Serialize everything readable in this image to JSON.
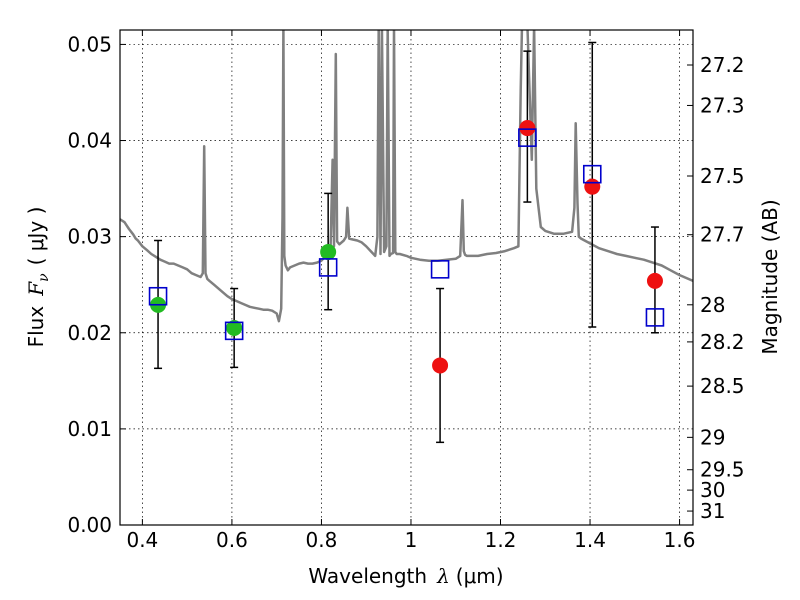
{
  "chart_data": {
    "type": "scatter",
    "xlabel": "Wavelength  λ (μm)",
    "ylabel": "Flux  F_ν  ( μJy )",
    "ylabel_parts": {
      "prefix": "Flux",
      "symbol": "F",
      "subscript": "ν",
      "unit": "( μJy )"
    },
    "xlabel_parts": {
      "prefix": "Wavelength",
      "symbol": "λ",
      "unit": "(μm)"
    },
    "y2label": "Magnitude (AB)",
    "xlim": [
      0.35,
      1.63
    ],
    "ylim": [
      0.0,
      0.0515
    ],
    "grid": true,
    "x_ticks": [
      {
        "value": 0.4,
        "label": "0.4"
      },
      {
        "value": 0.6,
        "label": "0.6"
      },
      {
        "value": 0.8,
        "label": "0.8"
      },
      {
        "value": 1.0,
        "label": "1"
      },
      {
        "value": 1.2,
        "label": "1.2"
      },
      {
        "value": 1.4,
        "label": "1.4"
      },
      {
        "value": 1.6,
        "label": "1.6"
      }
    ],
    "y_ticks": [
      {
        "value": 0.0,
        "label": "0.00"
      },
      {
        "value": 0.01,
        "label": "0.01"
      },
      {
        "value": 0.02,
        "label": "0.02"
      },
      {
        "value": 0.03,
        "label": "0.03"
      },
      {
        "value": 0.04,
        "label": "0.04"
      },
      {
        "value": 0.05,
        "label": "0.05"
      }
    ],
    "y2_ticks": [
      {
        "label": "27.2",
        "flux": 0.04786
      },
      {
        "label": "27.3",
        "flux": 0.04365
      },
      {
        "label": "27.5",
        "flux": 0.03631
      },
      {
        "label": "27.7",
        "flux": 0.0302
      },
      {
        "label": "28",
        "flux": 0.02291
      },
      {
        "label": "28.2",
        "flux": 0.01905
      },
      {
        "label": "28.5",
        "flux": 0.01445
      },
      {
        "label": "29",
        "flux": 0.00912
      },
      {
        "label": "29.5",
        "flux": 0.00575
      },
      {
        "label": "30",
        "flux": 0.00363
      },
      {
        "label": "31",
        "flux": 0.00145
      }
    ],
    "model_spectrum": {
      "color": "#808080",
      "x": [
        0.35,
        0.36,
        0.37,
        0.38,
        0.385,
        0.39,
        0.395,
        0.4,
        0.41,
        0.42,
        0.43,
        0.44,
        0.45,
        0.46,
        0.47,
        0.48,
        0.49,
        0.5,
        0.51,
        0.52,
        0.53,
        0.535,
        0.538,
        0.541,
        0.545,
        0.55,
        0.56,
        0.57,
        0.58,
        0.59,
        0.6,
        0.61,
        0.62,
        0.63,
        0.64,
        0.65,
        0.66,
        0.67,
        0.68,
        0.69,
        0.7,
        0.705,
        0.71,
        0.713,
        0.715,
        0.717,
        0.72,
        0.725,
        0.73,
        0.74,
        0.75,
        0.76,
        0.77,
        0.78,
        0.79,
        0.8,
        0.81,
        0.82,
        0.825,
        0.828,
        0.832,
        0.835,
        0.84,
        0.85,
        0.855,
        0.858,
        0.862,
        0.87,
        0.88,
        0.89,
        0.9,
        0.91,
        0.92,
        0.925,
        0.928,
        0.932,
        0.935,
        0.94,
        0.945,
        0.948,
        0.952,
        0.955,
        0.96,
        0.962,
        0.965,
        0.968,
        0.975,
        0.99,
        1.0,
        1.02,
        1.04,
        1.06,
        1.08,
        1.1,
        1.11,
        1.115,
        1.118,
        1.121,
        1.125,
        1.13,
        1.15,
        1.17,
        1.19,
        1.21,
        1.23,
        1.24,
        1.245,
        1.248,
        1.252,
        1.255,
        1.26,
        1.27,
        1.275,
        1.28,
        1.29,
        1.3,
        1.32,
        1.34,
        1.36,
        1.365,
        1.368,
        1.372,
        1.375,
        1.38,
        1.4,
        1.42,
        1.44,
        1.46,
        1.48,
        1.5,
        1.52,
        1.54,
        1.56,
        1.58,
        1.6,
        1.63
      ],
      "y": [
        0.0318,
        0.0315,
        0.0308,
        0.0302,
        0.0298,
        0.0296,
        0.0293,
        0.029,
        0.0286,
        0.0282,
        0.0279,
        0.0276,
        0.0274,
        0.0272,
        0.0272,
        0.027,
        0.0268,
        0.0266,
        0.0262,
        0.026,
        0.0258,
        0.0262,
        0.0394,
        0.0262,
        0.0256,
        0.0254,
        0.025,
        0.0246,
        0.0242,
        0.0238,
        0.0235,
        0.0233,
        0.0231,
        0.0229,
        0.0227,
        0.0226,
        0.0225,
        0.0224,
        0.0224,
        0.0223,
        0.022,
        0.0212,
        0.0225,
        0.032,
        0.052,
        0.028,
        0.027,
        0.0265,
        0.0268,
        0.027,
        0.0272,
        0.0273,
        0.0272,
        0.0272,
        0.0273,
        0.0275,
        0.028,
        0.0281,
        0.038,
        0.029,
        0.049,
        0.0295,
        0.0292,
        0.0296,
        0.03,
        0.033,
        0.0298,
        0.0297,
        0.0296,
        0.0294,
        0.029,
        0.0285,
        0.028,
        0.03,
        0.052,
        0.0282,
        0.052,
        0.0284,
        0.029,
        0.052,
        0.028,
        0.0282,
        0.0283,
        0.052,
        0.0284,
        0.0282,
        0.0282,
        0.028,
        0.0278,
        0.0276,
        0.0275,
        0.0275,
        0.0276,
        0.0277,
        0.028,
        0.0338,
        0.0285,
        0.0281,
        0.028,
        0.028,
        0.028,
        0.0282,
        0.0283,
        0.0285,
        0.0288,
        0.029,
        0.0452,
        0.052,
        0.052,
        0.052,
        0.052,
        0.038,
        0.052,
        0.035,
        0.031,
        0.0306,
        0.0303,
        0.0303,
        0.0305,
        0.033,
        0.0418,
        0.0335,
        0.03,
        0.0298,
        0.0293,
        0.0288,
        0.0285,
        0.0282,
        0.028,
        0.0278,
        0.0276,
        0.0273,
        0.027,
        0.0265,
        0.026,
        0.0254
      ]
    },
    "error_bars": [
      {
        "x": 0.435,
        "low": 0.0163,
        "high": 0.0296
      },
      {
        "x": 0.605,
        "low": 0.0164,
        "high": 0.0246
      },
      {
        "x": 0.815,
        "low": 0.0224,
        "high": 0.0345
      },
      {
        "x": 1.065,
        "low": 0.0086,
        "high": 0.0246
      },
      {
        "x": 1.26,
        "low": 0.0336,
        "high": 0.0493
      },
      {
        "x": 1.405,
        "low": 0.0206,
        "high": 0.0502
      },
      {
        "x": 1.545,
        "low": 0.02,
        "high": 0.031
      }
    ],
    "series": [
      {
        "marker": "circle",
        "color": "#22bb22",
        "points": [
          {
            "x": 0.435,
            "y": 0.0229
          },
          {
            "x": 0.605,
            "y": 0.0205
          },
          {
            "x": 0.815,
            "y": 0.0284
          }
        ]
      },
      {
        "marker": "circle",
        "color": "#ee1111",
        "points": [
          {
            "x": 1.065,
            "y": 0.0166
          },
          {
            "x": 1.26,
            "y": 0.0413
          },
          {
            "x": 1.405,
            "y": 0.0352
          },
          {
            "x": 1.545,
            "y": 0.0254
          }
        ]
      },
      {
        "marker": "square",
        "color": "#0000cc",
        "points": [
          {
            "x": 0.435,
            "y": 0.0238
          },
          {
            "x": 0.605,
            "y": 0.0202
          },
          {
            "x": 0.815,
            "y": 0.0268
          },
          {
            "x": 1.065,
            "y": 0.0266
          },
          {
            "x": 1.26,
            "y": 0.0403
          },
          {
            "x": 1.405,
            "y": 0.0365
          },
          {
            "x": 1.545,
            "y": 0.0216
          }
        ]
      }
    ]
  }
}
